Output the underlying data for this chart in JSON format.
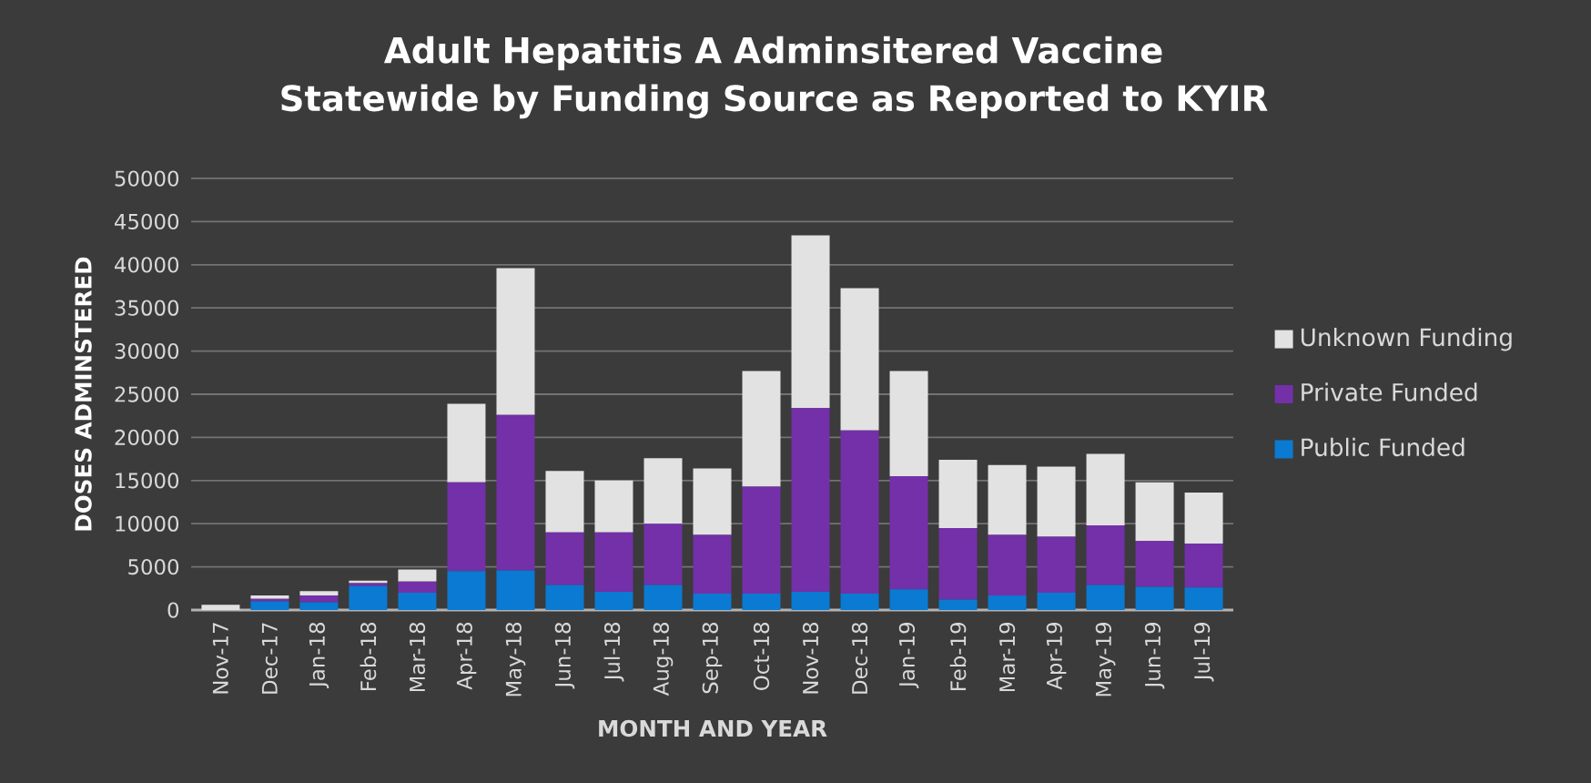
{
  "chart_data": {
    "type": "bar",
    "stacked": true,
    "title": "Adult Hepatitis A Adminsitered Vaccine Statewide by Funding Source as Reported to KYIR",
    "xlabel": "MONTH AND YEAR",
    "ylabel": "DOSES ADMINSTERED",
    "categories": [
      "Nov-17",
      "Dec-17",
      "Jan-18",
      "Feb-18",
      "Mar-18",
      "Apr-18",
      "May-18",
      "Jun-18",
      "Jul-18",
      "Aug-18",
      "Sep-18",
      "Oct-18",
      "Nov-18",
      "Dec-18",
      "Jan-19",
      "Feb-19",
      "Mar-19",
      "Apr-19",
      "May-19",
      "Jun-19",
      "Jul-19"
    ],
    "series": [
      {
        "name": "Public Funded",
        "color": "#0a7ad2",
        "values": [
          0,
          1000,
          900,
          2800,
          2000,
          4500,
          4600,
          2900,
          2100,
          2900,
          1900,
          1900,
          2100,
          1900,
          2400,
          1200,
          1700,
          2000,
          2900,
          2700,
          2600
        ]
      },
      {
        "name": "Private Funded",
        "color": "#7330a8",
        "values": [
          0,
          300,
          800,
          300,
          1300,
          10300,
          18000,
          6100,
          6900,
          7100,
          6800,
          12400,
          21300,
          18900,
          13100,
          8300,
          7000,
          6500,
          6900,
          5300,
          5100
        ]
      },
      {
        "name": "Unknown Funding",
        "color": "#e2e2e2",
        "values": [
          600,
          400,
          500,
          300,
          1400,
          9100,
          17000,
          7100,
          6000,
          7600,
          7700,
          13400,
          20000,
          16500,
          12200,
          7900,
          8100,
          8100,
          8300,
          6800,
          5900
        ]
      }
    ],
    "ylim": [
      0,
      50000
    ],
    "yticks": [
      0,
      5000,
      10000,
      15000,
      20000,
      25000,
      30000,
      35000,
      40000,
      45000,
      50000
    ],
    "grid": "y",
    "legend": "right"
  }
}
